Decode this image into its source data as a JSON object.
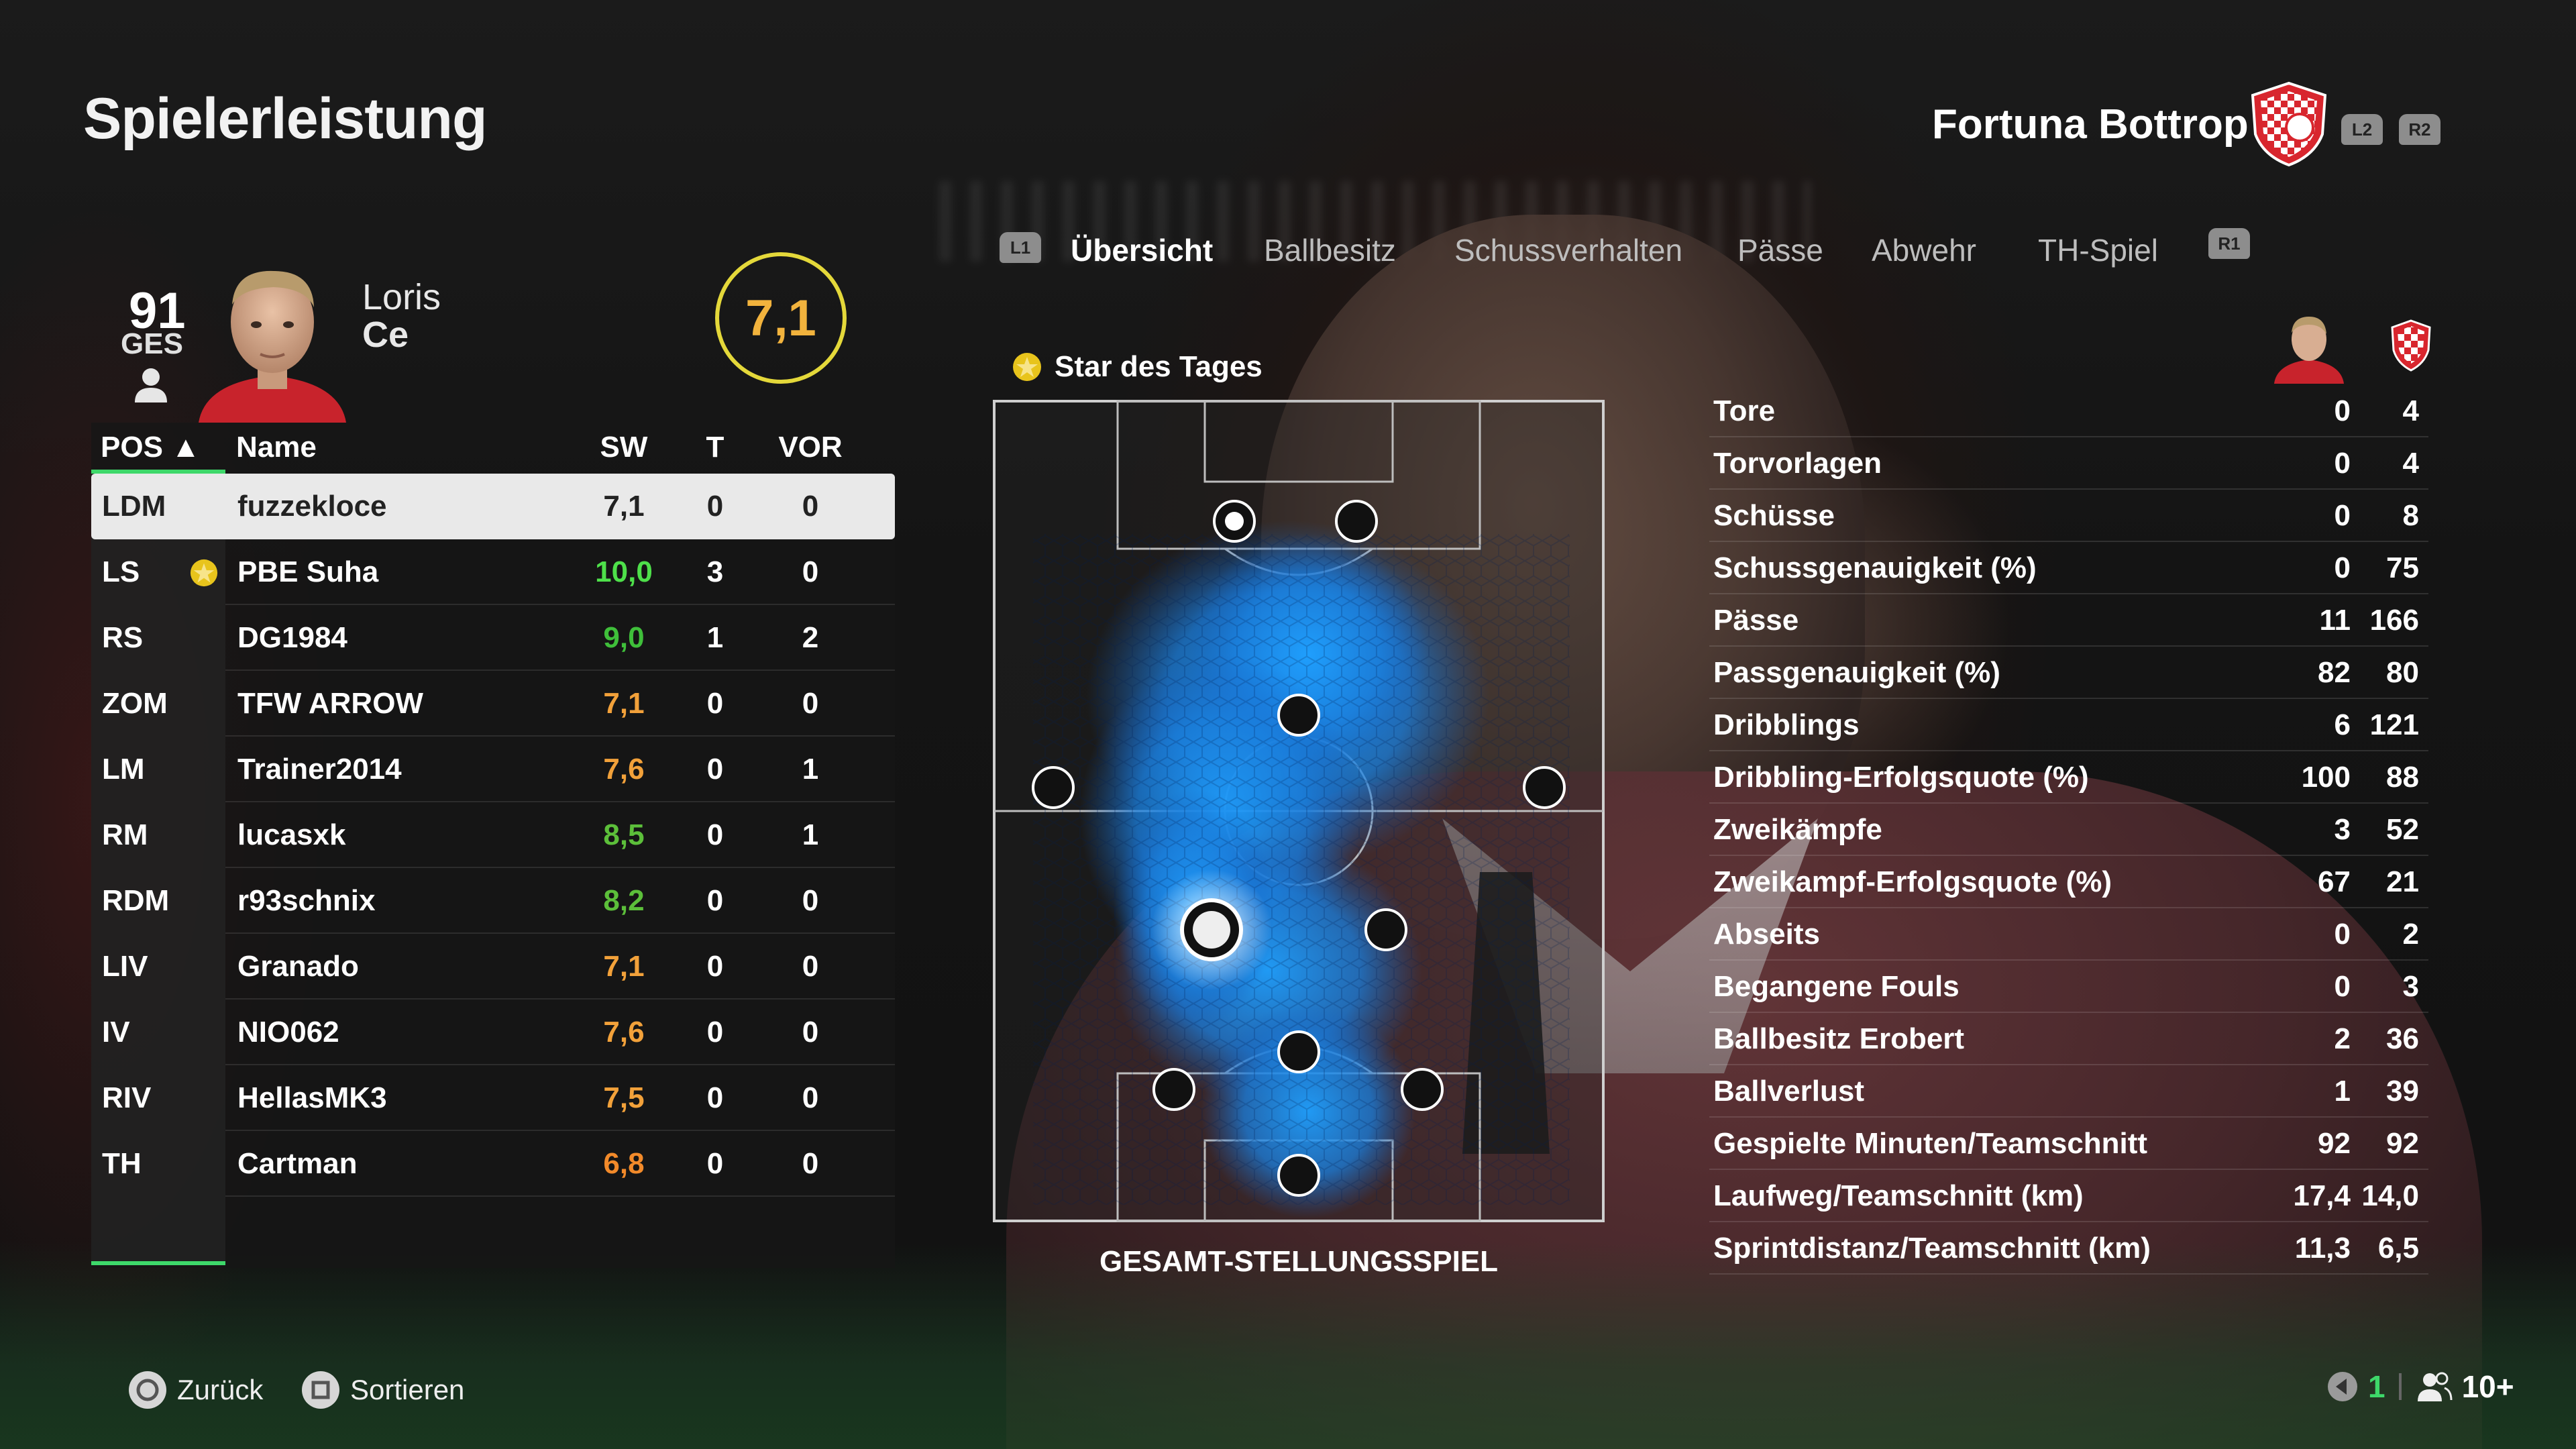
{
  "page_title": "Spielerleistung",
  "team": {
    "name": "Fortuna Bottrop",
    "l2_label": "L2",
    "r2_label": "R2",
    "crest_color": "#d8262e"
  },
  "player_card": {
    "overall": "91",
    "overall_label": "GES",
    "first_name": "Loris",
    "last_name": "Ce",
    "match_rating": "7,1"
  },
  "table": {
    "headers": {
      "pos": "POS ▲",
      "name": "Name",
      "sw": "SW",
      "t": "T",
      "vor": "VOR"
    },
    "rows": [
      {
        "pos": "LDM",
        "name": "fuzzekloce",
        "sw": "7,1",
        "t": "0",
        "vor": "0",
        "color": "#333333",
        "selected": true
      },
      {
        "pos": "LS",
        "name": "PBE Suha",
        "sw": "10,0",
        "t": "3",
        "vor": "0",
        "color": "#4ee04a",
        "star": true
      },
      {
        "pos": "RS",
        "name": "DG1984",
        "sw": "9,0",
        "t": "1",
        "vor": "2",
        "color": "#3fbf3a"
      },
      {
        "pos": "ZOM",
        "name": "TFW ARROW",
        "sw": "7,1",
        "t": "0",
        "vor": "0",
        "color": "#f2a13a"
      },
      {
        "pos": "LM",
        "name": "Trainer2014",
        "sw": "7,6",
        "t": "0",
        "vor": "1",
        "color": "#f2a13a"
      },
      {
        "pos": "RM",
        "name": "lucasxk",
        "sw": "8,5",
        "t": "0",
        "vor": "1",
        "color": "#5cbf3a"
      },
      {
        "pos": "RDM",
        "name": "r93schnix",
        "sw": "8,2",
        "t": "0",
        "vor": "0",
        "color": "#5cbf3a"
      },
      {
        "pos": "LIV",
        "name": "Granado",
        "sw": "7,1",
        "t": "0",
        "vor": "0",
        "color": "#f2a13a"
      },
      {
        "pos": "IV",
        "name": "NIO062",
        "sw": "7,6",
        "t": "0",
        "vor": "0",
        "color": "#f2a13a"
      },
      {
        "pos": "RIV",
        "name": "HellasMK3",
        "sw": "7,5",
        "t": "0",
        "vor": "0",
        "color": "#f2a13a"
      },
      {
        "pos": "TH",
        "name": "Cartman",
        "sw": "6,8",
        "t": "0",
        "vor": "0",
        "color": "#f28a2a"
      }
    ]
  },
  "tabs": {
    "l1_label": "L1",
    "r1_label": "R1",
    "items": [
      "Übersicht",
      "Ballbesitz",
      "Schussverhalten",
      "Pässe",
      "Abwehr",
      "TH-Spiel"
    ],
    "active_index": 0
  },
  "star_of_day_label": "Star des Tages",
  "pitch_caption": "GESAMT-STELLUNGSSPIEL",
  "stats": [
    {
      "label": "Tore",
      "player": "0",
      "team": "4"
    },
    {
      "label": "Torvorlagen",
      "player": "0",
      "team": "4"
    },
    {
      "label": "Schüsse",
      "player": "0",
      "team": "8"
    },
    {
      "label": "Schussgenauigkeit (%)",
      "player": "0",
      "team": "75"
    },
    {
      "label": "Pässe",
      "player": "11",
      "team": "166"
    },
    {
      "label": "Passgenauigkeit (%)",
      "player": "82",
      "team": "80"
    },
    {
      "label": "Dribblings",
      "player": "6",
      "team": "121"
    },
    {
      "label": "Dribbling-Erfolgsquote (%)",
      "player": "100",
      "team": "88"
    },
    {
      "label": "Zweikämpfe",
      "player": "3",
      "team": "52"
    },
    {
      "label": "Zweikampf-Erfolgsquote (%)",
      "player": "67",
      "team": "21"
    },
    {
      "label": "Abseits",
      "player": "0",
      "team": "2"
    },
    {
      "label": "Begangene Fouls",
      "player": "0",
      "team": "3"
    },
    {
      "label": "Ballbesitz Erobert",
      "player": "2",
      "team": "36"
    },
    {
      "label": "Ballverlust",
      "player": "1",
      "team": "39"
    },
    {
      "label": "Gespielte Minuten/Teamschnitt",
      "player": "92",
      "team": "92"
    },
    {
      "label": "Laufweg/Teamschnitt (km)",
      "player": "17,4",
      "team": "14,0"
    },
    {
      "label": "Sprintdistanz/Teamschnitt (km)",
      "player": "11,3",
      "team": "6,5"
    }
  ],
  "footer": {
    "back_label": "Zurück",
    "sort_label": "Sortieren",
    "count": "1",
    "players_label": "10+"
  }
}
